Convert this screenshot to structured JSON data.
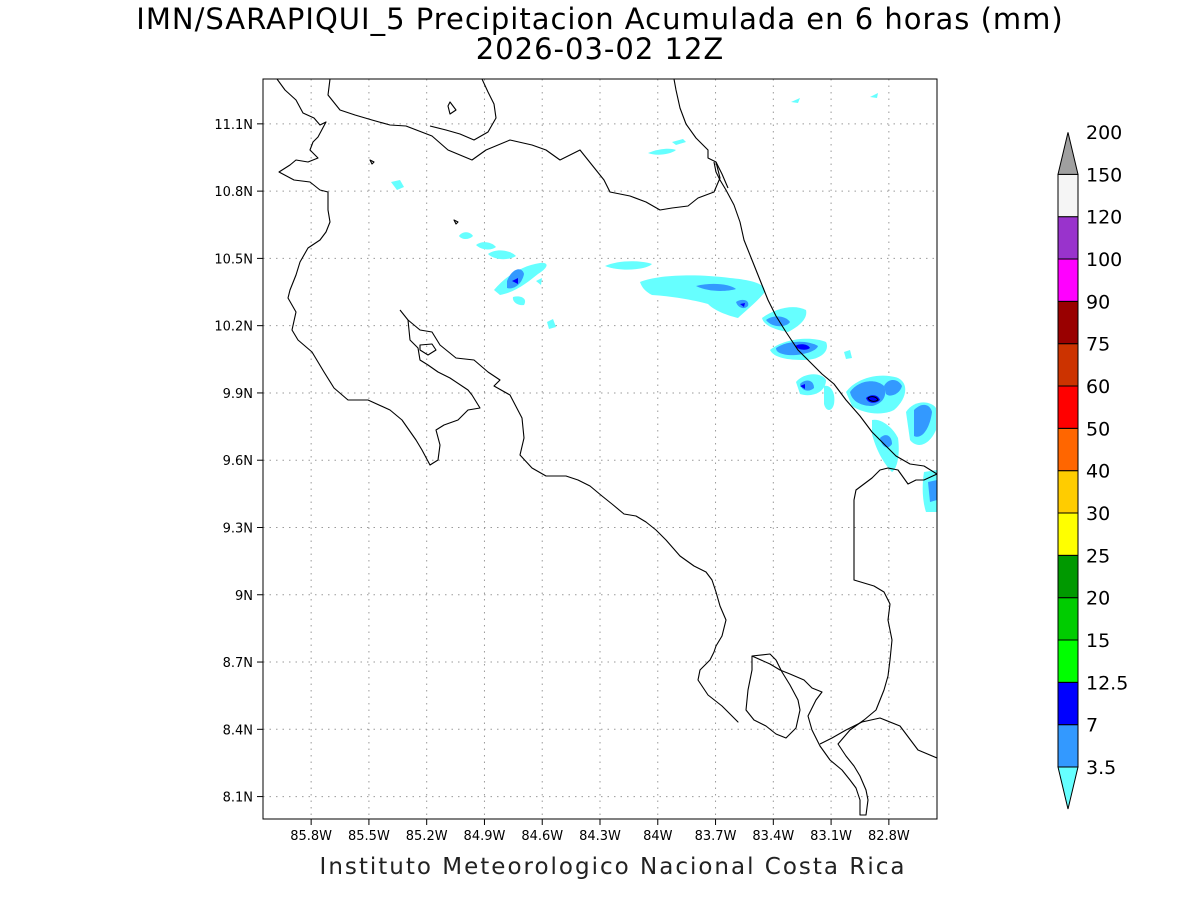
{
  "header": {
    "title": "IMN/SARAPIQUI_5 Precipitacion Acumulada en 6 horas (mm)",
    "subtitle": "2026-03-02 12Z"
  },
  "footer": {
    "credit": "Instituto Meteorologico Nacional Costa Rica"
  },
  "map": {
    "lon_range": [
      -86.05,
      -82.55
    ],
    "lat_range": [
      8.0,
      11.3
    ],
    "lon_ticks": [
      {
        "value": -85.8,
        "label": "85.8W"
      },
      {
        "value": -85.5,
        "label": "85.5W"
      },
      {
        "value": -85.2,
        "label": "85.2W"
      },
      {
        "value": -84.9,
        "label": "84.9W"
      },
      {
        "value": -84.6,
        "label": "84.6W"
      },
      {
        "value": -84.3,
        "label": "84.3W"
      },
      {
        "value": -84.0,
        "label": "84W"
      },
      {
        "value": -83.7,
        "label": "83.7W"
      },
      {
        "value": -83.4,
        "label": "83.4W"
      },
      {
        "value": -83.1,
        "label": "83.1W"
      },
      {
        "value": -82.8,
        "label": "82.8W"
      }
    ],
    "lat_ticks": [
      {
        "value": 11.1,
        "label": "11.1N"
      },
      {
        "value": 10.8,
        "label": "10.8N"
      },
      {
        "value": 10.5,
        "label": "10.5N"
      },
      {
        "value": 10.2,
        "label": "10.2N"
      },
      {
        "value": 9.9,
        "label": "9.9N"
      },
      {
        "value": 9.6,
        "label": "9.6N"
      },
      {
        "value": 9.3,
        "label": "9.3N"
      },
      {
        "value": 9.0,
        "label": "9N"
      },
      {
        "value": 8.7,
        "label": "8.7N"
      },
      {
        "value": 8.4,
        "label": "8.4N"
      },
      {
        "value": 8.1,
        "label": "8.1N"
      }
    ],
    "grid": true
  },
  "colorbar": {
    "levels": [
      {
        "label": "3.5",
        "color": "#66ffff"
      },
      {
        "label": "7",
        "color": "#3399ff"
      },
      {
        "label": "12.5",
        "color": "#0000ff"
      },
      {
        "label": "15",
        "color": "#00ff00"
      },
      {
        "label": "20",
        "color": "#00cc00"
      },
      {
        "label": "25",
        "color": "#009900"
      },
      {
        "label": "30",
        "color": "#ffff00"
      },
      {
        "label": "40",
        "color": "#ffcc00"
      },
      {
        "label": "50",
        "color": "#ff6600"
      },
      {
        "label": "60",
        "color": "#ff0000"
      },
      {
        "label": "75",
        "color": "#cc3300"
      },
      {
        "label": "90",
        "color": "#990000"
      },
      {
        "label": "100",
        "color": "#ff00ff"
      },
      {
        "label": "120",
        "color": "#9933cc"
      },
      {
        "label": "150",
        "color": "#f5f5f5"
      },
      {
        "label": "200",
        "color": "#a0a0a0"
      }
    ]
  }
}
